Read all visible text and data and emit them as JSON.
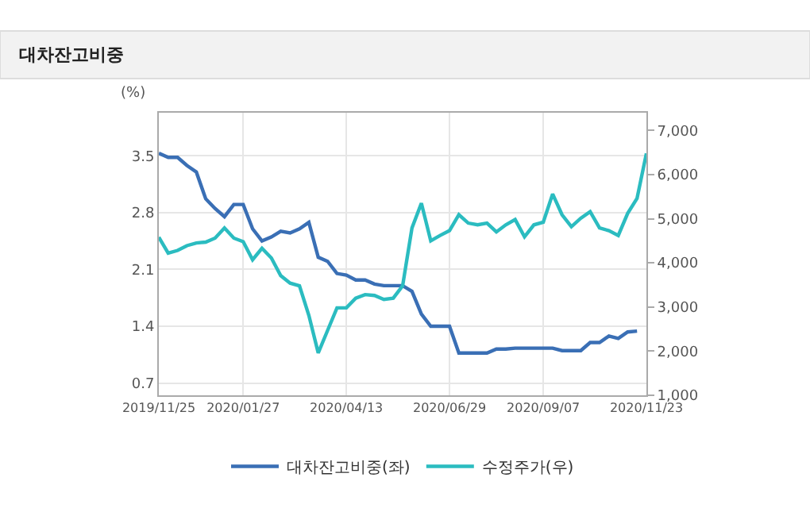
{
  "chart_data": {
    "type": "line",
    "title": "대차잔고비중",
    "ylabel": "(%)",
    "x": [
      "2019-11-25",
      "2019-12-02",
      "2019-12-09",
      "2019-12-16",
      "2019-12-23",
      "2019-12-30",
      "2020-01-06",
      "2020-01-13",
      "2020-01-20",
      "2020-01-27",
      "2020-02-03",
      "2020-02-10",
      "2020-02-17",
      "2020-02-24",
      "2020-03-02",
      "2020-03-09",
      "2020-03-16",
      "2020-03-23",
      "2020-03-30",
      "2020-04-06",
      "2020-04-13",
      "2020-04-20",
      "2020-04-27",
      "2020-05-04",
      "2020-05-11",
      "2020-05-18",
      "2020-05-25",
      "2020-06-01",
      "2020-06-08",
      "2020-06-15",
      "2020-06-22",
      "2020-06-29",
      "2020-07-06",
      "2020-07-13",
      "2020-07-20",
      "2020-07-27",
      "2020-08-03",
      "2020-08-10",
      "2020-08-17",
      "2020-08-24",
      "2020-08-31",
      "2020-09-07",
      "2020-09-14",
      "2020-09-21",
      "2020-09-28",
      "2020-10-05",
      "2020-10-12",
      "2020-10-19",
      "2020-10-26",
      "2020-11-02",
      "2020-11-09",
      "2020-11-16",
      "2020-11-23"
    ],
    "series": [
      {
        "name": "대차잔고비중(좌)",
        "color": "#3a6fb5",
        "values": [
          3.53,
          3.48,
          3.48,
          3.38,
          3.3,
          2.97,
          2.85,
          2.75,
          2.9,
          2.9,
          2.6,
          2.45,
          2.5,
          2.57,
          2.55,
          2.6,
          2.68,
          2.25,
          2.2,
          2.05,
          2.03,
          1.97,
          1.97,
          1.92,
          1.9,
          1.9,
          1.9,
          1.83,
          1.55,
          1.4,
          1.4,
          1.4,
          1.07,
          1.07,
          1.07,
          1.07,
          1.12,
          1.12,
          1.13,
          1.13,
          1.13,
          1.13,
          1.13,
          1.1,
          1.1,
          1.1,
          1.2,
          1.2,
          1.28,
          1.25,
          1.33,
          1.34,
          null
        ]
      },
      {
        "name": "수정주가(우)",
        "color": "#2bbcc0",
        "axis": "y2",
        "values": [
          4580,
          4220,
          4280,
          4390,
          4450,
          4470,
          4560,
          4790,
          4560,
          4480,
          4070,
          4330,
          4110,
          3710,
          3540,
          3480,
          2810,
          1960,
          2470,
          2980,
          2980,
          3200,
          3280,
          3260,
          3170,
          3200,
          3480,
          4790,
          5350,
          4500,
          4620,
          4730,
          5090,
          4900,
          4860,
          4900,
          4700,
          4860,
          4980,
          4590,
          4860,
          4920,
          5560,
          5090,
          4820,
          5010,
          5160,
          4790,
          4730,
          4620,
          5120,
          5460,
          6480
        ]
      }
    ],
    "xlim": [
      "2019-11-25",
      "2020-11-23"
    ],
    "xticks": [
      {
        "value": "2019-11-25",
        "label": "2019/11/25"
      },
      {
        "value": "2020-01-27",
        "label": "2020/01/27"
      },
      {
        "value": "2020-04-13",
        "label": "2020/04/13"
      },
      {
        "value": "2020-06-29",
        "label": "2020/06/29"
      },
      {
        "value": "2020-09-07",
        "label": "2020/09/07"
      },
      {
        "value": "2020-11-23",
        "label": "2020/11/23"
      }
    ],
    "ylim": [
      0.55,
      4.03
    ],
    "yticks": [
      0.7,
      1.4,
      2.1,
      2.8,
      3.5
    ],
    "y2lim": [
      1000,
      7400
    ],
    "y2ticks": [
      {
        "value": 1000,
        "label": "1,000"
      },
      {
        "value": 2000,
        "label": "2,000"
      },
      {
        "value": 3000,
        "label": "3,000"
      },
      {
        "value": 4000,
        "label": "4,000"
      },
      {
        "value": 5000,
        "label": "5,000"
      },
      {
        "value": 6000,
        "label": "6,000"
      },
      {
        "value": 7000,
        "label": "7,000"
      }
    ],
    "grid": true,
    "legend": "bottom",
    "marker": "none",
    "line_style": "solid"
  }
}
